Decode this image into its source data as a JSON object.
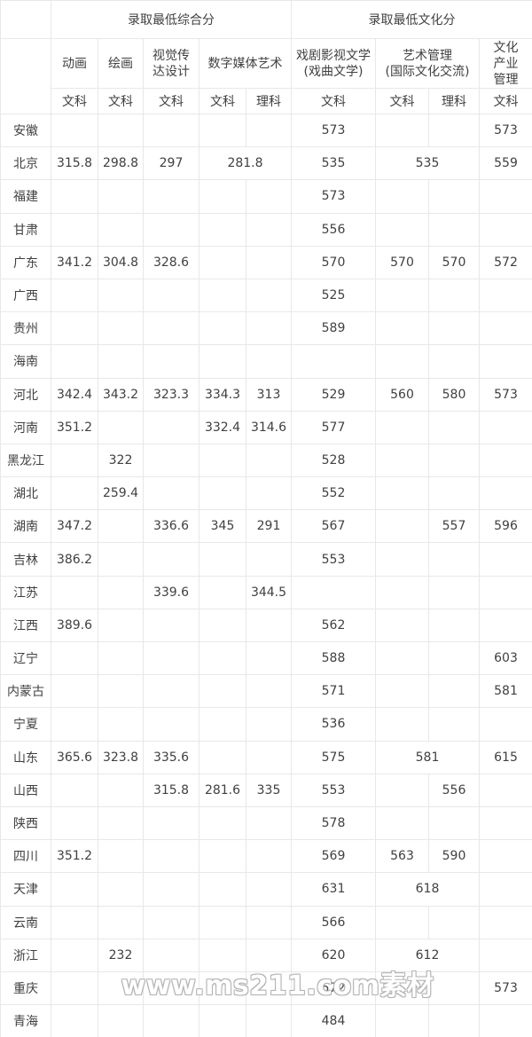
{
  "chart_data": {
    "type": "table",
    "header": {
      "corner_label": "",
      "groups": [
        {
          "label": "录取最低综合分",
          "span": 5
        },
        {
          "label": "录取最低文化分",
          "span": 4
        }
      ],
      "majors": [
        {
          "label": "动画",
          "tracks": [
            "文科"
          ]
        },
        {
          "label": "绘画",
          "tracks": [
            "文科"
          ]
        },
        {
          "label": "视觉传\n达设计",
          "tracks": [
            "文科"
          ]
        },
        {
          "label": "数字媒体艺术",
          "tracks": [
            "文科",
            "理科"
          ]
        },
        {
          "label": "戏剧影视文学\n(戏曲文学)",
          "tracks": [
            "文科"
          ]
        },
        {
          "label": "艺术管理\n(国际文化交流)",
          "tracks": [
            "文科",
            "理科"
          ]
        },
        {
          "label": "文化\n产业\n管理",
          "tracks": [
            "文科"
          ]
        }
      ]
    },
    "rows": [
      {
        "province": "安徽",
        "cells": [
          "",
          "",
          "",
          "",
          "",
          "573",
          "",
          "",
          "573"
        ]
      },
      {
        "province": "北京",
        "cells": [
          "315.8",
          "298.8",
          "297",
          {
            "v": "281.8",
            "span": 2
          },
          "535",
          {
            "v": "535",
            "span": 2
          },
          "559"
        ]
      },
      {
        "province": "福建",
        "cells": [
          "",
          "",
          "",
          "",
          "",
          "573",
          "",
          "",
          ""
        ]
      },
      {
        "province": "甘肃",
        "cells": [
          "",
          "",
          "",
          "",
          "",
          "556",
          "",
          "",
          ""
        ]
      },
      {
        "province": "广东",
        "cells": [
          "341.2",
          "304.8",
          "328.6",
          "",
          "",
          "570",
          "570",
          "570",
          "572"
        ]
      },
      {
        "province": "广西",
        "cells": [
          "",
          "",
          "",
          "",
          "",
          "525",
          "",
          "",
          ""
        ]
      },
      {
        "province": "贵州",
        "cells": [
          "",
          "",
          "",
          "",
          "",
          "589",
          "",
          "",
          ""
        ]
      },
      {
        "province": "海南",
        "cells": [
          "",
          "",
          "",
          "",
          "",
          "",
          "",
          "",
          ""
        ]
      },
      {
        "province": "河北",
        "cells": [
          "342.4",
          "343.2",
          "323.3",
          "334.3",
          "313",
          "529",
          "560",
          "580",
          "573"
        ]
      },
      {
        "province": "河南",
        "cells": [
          "351.2",
          "",
          "",
          "332.4",
          "314.6",
          "577",
          "",
          "",
          ""
        ]
      },
      {
        "province": "黑龙江",
        "cells": [
          "",
          "322",
          "",
          "",
          "",
          "528",
          "",
          "",
          ""
        ]
      },
      {
        "province": "湖北",
        "cells": [
          "",
          "259.4",
          "",
          "",
          "",
          "552",
          "",
          "",
          ""
        ]
      },
      {
        "province": "湖南",
        "cells": [
          "347.2",
          "",
          "336.6",
          "345",
          "291",
          "567",
          "",
          "557",
          "596"
        ]
      },
      {
        "province": "吉林",
        "cells": [
          "386.2",
          "",
          "",
          "",
          "",
          "553",
          "",
          "",
          ""
        ]
      },
      {
        "province": "江苏",
        "cells": [
          "",
          "",
          "339.6",
          "",
          "344.5",
          "",
          "",
          "",
          ""
        ]
      },
      {
        "province": "江西",
        "cells": [
          "389.6",
          "",
          "",
          "",
          "",
          "562",
          "",
          "",
          ""
        ]
      },
      {
        "province": "辽宁",
        "cells": [
          "",
          "",
          "",
          "",
          "",
          "588",
          "",
          "",
          "603"
        ]
      },
      {
        "province": "内蒙古",
        "cells": [
          "",
          "",
          "",
          "",
          "",
          "571",
          "",
          "",
          "581"
        ]
      },
      {
        "province": "宁夏",
        "cells": [
          "",
          "",
          "",
          "",
          "",
          "536",
          "",
          "",
          ""
        ]
      },
      {
        "province": "山东",
        "cells": [
          "365.6",
          "323.8",
          "335.6",
          "",
          "",
          "575",
          {
            "v": "581",
            "span": 2
          },
          "615"
        ]
      },
      {
        "province": "山西",
        "cells": [
          "",
          "",
          "315.8",
          "281.6",
          "335",
          "553",
          "",
          "556",
          ""
        ]
      },
      {
        "province": "陕西",
        "cells": [
          "",
          "",
          "",
          "",
          "",
          "578",
          "",
          "",
          ""
        ]
      },
      {
        "province": "四川",
        "cells": [
          "351.2",
          "",
          "",
          "",
          "",
          "569",
          "563",
          "590",
          ""
        ]
      },
      {
        "province": "天津",
        "cells": [
          "",
          "",
          "",
          "",
          "",
          "631",
          {
            "v": "618",
            "span": 2
          },
          ""
        ]
      },
      {
        "province": "云南",
        "cells": [
          "",
          "",
          "",
          "",
          "",
          "566",
          "",
          "",
          ""
        ]
      },
      {
        "province": "浙江",
        "cells": [
          "",
          "232",
          "",
          "",
          "",
          "620",
          {
            "v": "612",
            "span": 2
          },
          ""
        ]
      },
      {
        "province": "重庆",
        "cells": [
          "",
          "",
          "",
          "",
          "",
          "572",
          "",
          "",
          "573"
        ]
      },
      {
        "province": "青海",
        "cells": [
          "",
          "",
          "",
          "",
          "",
          "484",
          "",
          "",
          ""
        ]
      }
    ]
  },
  "watermark": {
    "text": "www.ms211.com素材"
  },
  "colors": {
    "background": "#ffffff",
    "border": "#e8e8e8",
    "text": "#404040",
    "watermark_fill": "#ffffff",
    "watermark_outline": "#b3b3b3"
  }
}
